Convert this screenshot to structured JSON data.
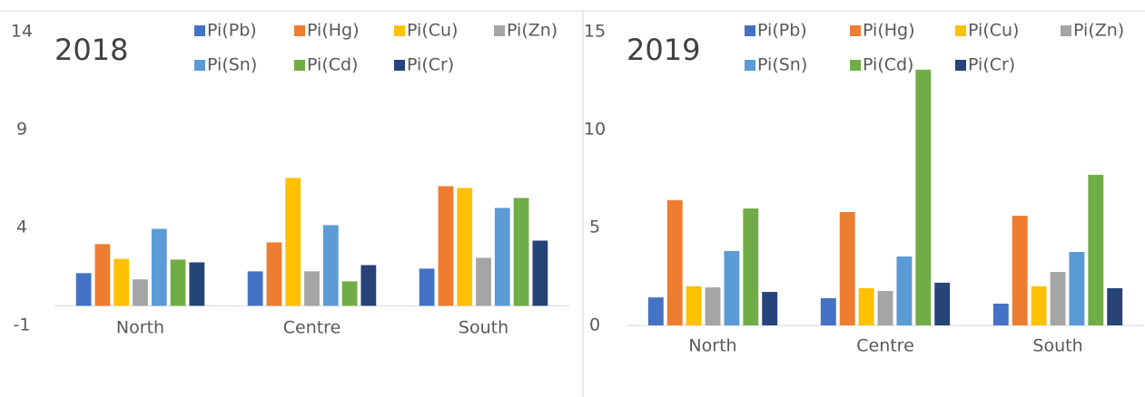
{
  "chart_data": [
    {
      "type": "bar",
      "title": "2018",
      "categories": [
        "North",
        "Centre",
        "South"
      ],
      "series": [
        {
          "name": "Pi(Pb)",
          "color": "#4472c4",
          "values": [
            1.67,
            1.76,
            1.9
          ]
        },
        {
          "name": "Pi(Hg)",
          "color": "#ed7d31",
          "values": [
            3.15,
            3.24,
            6.11
          ]
        },
        {
          "name": "Pi(Cu)",
          "color": "#ffc000",
          "values": [
            2.4,
            6.53,
            6.02
          ]
        },
        {
          "name": "Pi(Zn)",
          "color": "#a5a5a5",
          "values": [
            1.35,
            1.76,
            2.45
          ]
        },
        {
          "name": "Pi(Sn)",
          "color": "#5b9bd5",
          "values": [
            3.93,
            4.12,
            5.0
          ]
        },
        {
          "name": "Pi(Cd)",
          "color": "#70ad47",
          "values": [
            2.36,
            1.25,
            5.51
          ]
        },
        {
          "name": "Pi(Cr)",
          "color": "#264478",
          "values": [
            2.22,
            2.08,
            3.33
          ]
        }
      ],
      "ylim": [
        -1,
        14
      ],
      "yticks": [
        -1,
        4,
        9,
        14
      ],
      "grid": false,
      "legend": "top"
    },
    {
      "type": "bar",
      "title": "2019",
      "categories": [
        "North",
        "Centre",
        "South"
      ],
      "series": [
        {
          "name": "Pi(Pb)",
          "color": "#4472c4",
          "values": [
            1.43,
            1.39,
            1.11
          ]
        },
        {
          "name": "Pi(Hg)",
          "color": "#ed7d31",
          "values": [
            6.4,
            5.79,
            5.6
          ]
        },
        {
          "name": "Pi(Cu)",
          "color": "#ffc000",
          "values": [
            2.0,
            1.9,
            2.0
          ]
        },
        {
          "name": "Pi(Zn)",
          "color": "#a5a5a5",
          "values": [
            1.94,
            1.76,
            2.73
          ]
        },
        {
          "name": "Pi(Sn)",
          "color": "#5b9bd5",
          "values": [
            3.8,
            3.52,
            3.75
          ]
        },
        {
          "name": "Pi(Cd)",
          "color": "#70ad47",
          "values": [
            5.97,
            13.06,
            7.69
          ]
        },
        {
          "name": "Pi(Cr)",
          "color": "#264478",
          "values": [
            1.71,
            2.18,
            1.9
          ]
        }
      ],
      "ylim": [
        0,
        15
      ],
      "yticks": [
        0,
        5,
        10,
        15
      ],
      "grid": false,
      "legend": "top"
    }
  ]
}
